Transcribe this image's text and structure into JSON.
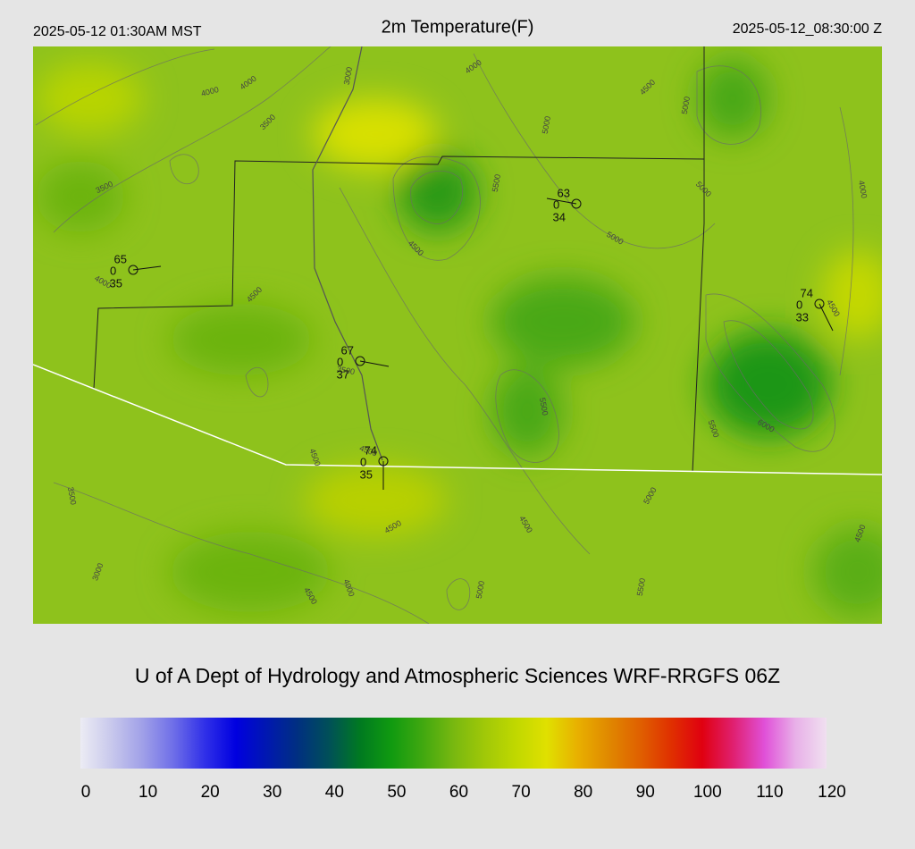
{
  "header": {
    "local_time": "2025-05-12 01:30AM MST",
    "title": "2m Temperature(F)",
    "valid_time": "2025-05-12_08:30:00 Z"
  },
  "stations": [
    {
      "temperature": "65",
      "code": "0",
      "dewpoint": "35"
    },
    {
      "temperature": "63",
      "code": "0",
      "dewpoint": "34"
    },
    {
      "temperature": "74",
      "code": "0",
      "dewpoint": "33"
    },
    {
      "temperature": "67",
      "code": "0",
      "dewpoint": "37"
    },
    {
      "temperature": "74",
      "code": "0",
      "dewpoint": "35"
    }
  ],
  "contour_labels": [
    "4000",
    "4000",
    "3000",
    "4000",
    "4500",
    "5000",
    "3500",
    "5000",
    "3500",
    "5500",
    "5000",
    "4000",
    "5000",
    "4500",
    "4000",
    "4500",
    "4500",
    "3500",
    "5500",
    "4500",
    "5500",
    "6000",
    "4500",
    "3500",
    "5000",
    "4500",
    "4500",
    "4500",
    "3000",
    "4000",
    "4500",
    "5000",
    "5500"
  ],
  "credit": "U of A Dept of Hydrology and Atmospheric Sciences WRF-RRGFS 06Z",
  "colorbar": {
    "range": [
      0,
      120
    ],
    "ticks": [
      0,
      10,
      20,
      30,
      40,
      50,
      60,
      70,
      80,
      90,
      100,
      110,
      120
    ],
    "colors": [
      "#ececf4",
      "#c8c8ec",
      "#a0a0e8",
      "#6e6ee8",
      "#3030e8",
      "#0000e0",
      "#0018b0",
      "#003080",
      "#005058",
      "#007a20",
      "#109a10",
      "#40a810",
      "#78b810",
      "#a0c808",
      "#c0d800",
      "#e0e000",
      "#e8b000",
      "#e08800",
      "#e06000",
      "#e03000",
      "#e00010",
      "#e02070",
      "#e050d8",
      "#e8b0e8",
      "#f0e0f0"
    ]
  }
}
